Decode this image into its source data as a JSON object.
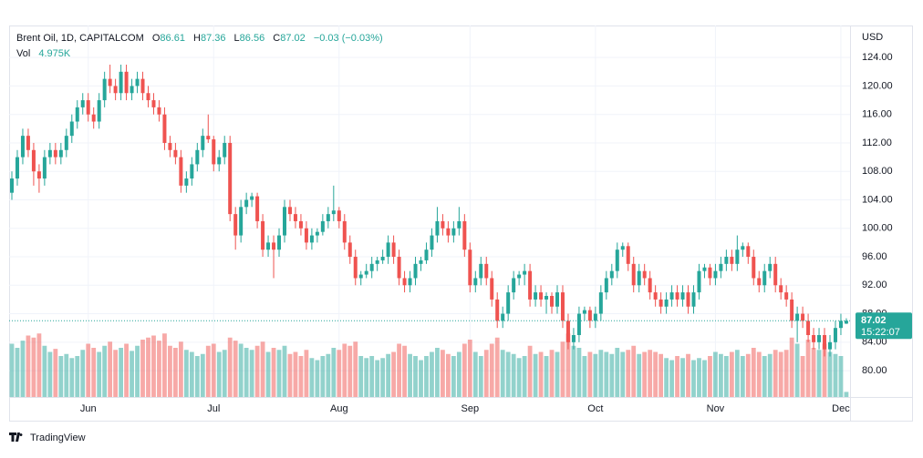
{
  "chart_data": {
    "type": "candlestick",
    "header": {
      "symbol": "Brent Oil, 1D, CAPITALCOM",
      "o_label": "O",
      "o": "86.61",
      "h_label": "H",
      "h": "87.36",
      "l_label": "L",
      "l": "86.56",
      "c_label": "C",
      "c": "87.02",
      "change": "−0.03 (−0.03%)",
      "vol_label": "Vol",
      "vol": "4.975K"
    },
    "currency": "USD",
    "last_price": 87.02,
    "last_price_label": "87.02",
    "countdown": "15:22:07",
    "brand": "TradingView",
    "up_color": "#26a69a",
    "down_color": "#ef5350",
    "grid": true,
    "ylim": [
      76.3,
      128.5
    ],
    "yticks": [
      {
        "value": 80,
        "label": "80.00"
      },
      {
        "value": 84,
        "label": "84.00"
      },
      {
        "value": 88,
        "label": "88.00"
      },
      {
        "value": 92,
        "label": "92.00"
      },
      {
        "value": 96,
        "label": "96.00"
      },
      {
        "value": 100,
        "label": "100.00"
      },
      {
        "value": 104,
        "label": "104.00"
      },
      {
        "value": 108,
        "label": "108.00"
      },
      {
        "value": 112,
        "label": "112.00"
      },
      {
        "value": 116,
        "label": "116.00"
      },
      {
        "value": 120,
        "label": "120.00"
      },
      {
        "value": 124,
        "label": "124.00"
      }
    ],
    "vlim": [
      0,
      80
    ],
    "xticks": [
      {
        "value": 14,
        "label": "Jun"
      },
      {
        "value": 37,
        "label": "Jul"
      },
      {
        "value": 60,
        "label": "Aug"
      },
      {
        "value": 84,
        "label": "Sep"
      },
      {
        "value": 107,
        "label": "Oct"
      },
      {
        "value": 129,
        "label": "Nov"
      },
      {
        "value": 152,
        "label": "Dec"
      }
    ],
    "candles": [
      [
        105,
        108,
        104,
        107,
        52
      ],
      [
        107,
        111,
        106,
        110,
        48
      ],
      [
        110,
        114,
        109,
        113,
        55
      ],
      [
        113,
        114,
        110,
        111,
        60
      ],
      [
        111,
        112,
        106,
        108,
        58
      ],
      [
        108,
        109,
        105,
        107,
        62
      ],
      [
        107,
        111,
        106,
        110,
        50
      ],
      [
        110,
        112,
        109,
        111,
        44
      ],
      [
        111,
        112,
        109,
        110,
        47
      ],
      [
        110,
        112,
        109,
        111,
        40
      ],
      [
        111,
        114,
        110,
        113,
        42
      ],
      [
        113,
        116,
        112,
        115,
        38
      ],
      [
        115,
        118,
        114,
        117,
        40
      ],
      [
        117,
        119,
        116,
        118,
        46
      ],
      [
        118,
        119,
        115,
        116,
        52
      ],
      [
        116,
        117,
        114,
        115,
        48
      ],
      [
        115,
        119,
        114,
        118,
        44
      ],
      [
        118,
        122,
        117,
        121,
        50
      ],
      [
        121,
        123,
        119,
        120,
        54
      ],
      [
        120,
        121,
        118,
        119,
        46
      ],
      [
        119,
        123,
        118,
        122,
        48
      ],
      [
        122,
        123,
        118,
        119,
        52
      ],
      [
        119,
        121,
        118,
        120,
        45
      ],
      [
        120,
        122,
        119,
        121,
        50
      ],
      [
        121,
        122,
        118,
        119,
        56
      ],
      [
        119,
        120,
        117,
        118,
        58
      ],
      [
        118,
        119,
        116,
        117,
        60
      ],
      [
        117,
        118,
        115,
        116,
        55
      ],
      [
        116,
        117,
        111,
        112,
        62
      ],
      [
        112,
        113,
        110,
        111,
        50
      ],
      [
        111,
        112,
        109,
        110,
        48
      ],
      [
        110,
        111,
        105,
        106,
        54
      ],
      [
        106,
        108,
        105,
        107,
        46
      ],
      [
        107,
        110,
        106,
        109,
        44
      ],
      [
        109,
        112,
        108,
        111,
        40
      ],
      [
        111,
        114,
        110,
        113,
        42
      ],
      [
        113,
        116,
        112,
        112.5,
        50
      ],
      [
        112.5,
        113,
        108,
        109,
        52
      ],
      [
        109,
        111,
        108,
        110,
        44
      ],
      [
        110,
        113,
        109,
        112,
        46
      ],
      [
        112,
        113,
        101,
        102,
        58
      ],
      [
        102,
        103,
        97,
        99,
        55
      ],
      [
        99,
        104,
        98,
        103,
        52
      ],
      [
        103,
        105,
        102,
        104,
        48
      ],
      [
        104,
        105,
        103,
        104.5,
        46
      ],
      [
        104.5,
        105,
        100,
        101,
        50
      ],
      [
        101,
        102,
        96,
        97,
        54
      ],
      [
        97,
        99,
        96,
        98,
        44
      ],
      [
        98,
        99,
        93,
        97,
        48
      ],
      [
        97,
        100,
        96,
        99,
        46
      ],
      [
        99,
        104,
        98,
        103,
        50
      ],
      [
        103,
        104,
        101,
        102,
        42
      ],
      [
        102,
        103,
        100,
        101,
        44
      ],
      [
        101,
        102,
        99,
        100,
        40
      ],
      [
        100,
        101,
        97,
        98,
        46
      ],
      [
        98,
        100,
        97,
        99,
        38
      ],
      [
        99,
        100,
        98,
        99.5,
        36
      ],
      [
        99.5,
        102,
        99,
        101,
        40
      ],
      [
        101,
        103,
        100,
        102,
        42
      ],
      [
        102,
        106,
        101,
        102.5,
        48
      ],
      [
        102.5,
        103,
        100,
        101,
        46
      ],
      [
        101,
        102,
        97,
        98,
        52
      ],
      [
        98,
        99,
        95,
        96,
        50
      ],
      [
        96,
        97,
        92,
        93,
        54
      ],
      [
        93,
        94,
        92,
        93.5,
        40
      ],
      [
        93.5,
        95,
        93,
        94,
        38
      ],
      [
        94,
        96,
        93,
        95,
        40
      ],
      [
        95,
        96,
        94,
        95.5,
        36
      ],
      [
        95.5,
        97,
        95,
        96,
        38
      ],
      [
        96,
        99,
        95,
        98,
        42
      ],
      [
        98,
        99,
        95,
        96,
        44
      ],
      [
        96,
        97,
        92,
        93,
        52
      ],
      [
        93,
        94,
        91,
        92,
        50
      ],
      [
        92,
        94,
        91,
        93,
        42
      ],
      [
        93,
        96,
        92,
        95,
        40
      ],
      [
        95,
        96,
        94,
        95.5,
        36
      ],
      [
        95.5,
        98,
        95,
        97,
        40
      ],
      [
        97,
        100,
        96,
        99,
        44
      ],
      [
        99,
        103,
        98,
        101,
        48
      ],
      [
        101,
        102,
        99,
        100,
        46
      ],
      [
        100,
        101,
        98,
        99,
        42
      ],
      [
        99,
        101,
        98,
        100,
        40
      ],
      [
        100,
        103,
        99,
        101,
        44
      ],
      [
        101,
        102,
        96,
        97,
        52
      ],
      [
        97,
        98,
        91,
        92,
        56
      ],
      [
        92,
        94,
        91,
        93,
        44
      ],
      [
        93,
        96,
        92,
        95,
        40
      ],
      [
        95,
        96,
        92,
        93,
        46
      ],
      [
        93,
        94,
        89,
        90,
        52
      ],
      [
        90,
        91,
        86,
        87,
        58
      ],
      [
        87,
        89,
        86,
        88,
        46
      ],
      [
        88,
        92,
        87,
        91,
        44
      ],
      [
        91,
        94,
        90,
        93,
        42
      ],
      [
        93,
        94,
        92,
        93.5,
        38
      ],
      [
        93.5,
        95,
        92,
        94,
        40
      ],
      [
        94,
        95,
        89,
        90,
        50
      ],
      [
        90,
        92,
        89,
        91,
        42
      ],
      [
        91,
        92,
        89,
        90,
        44
      ],
      [
        90,
        91,
        88,
        90.5,
        40
      ],
      [
        90.5,
        91,
        88,
        89,
        46
      ],
      [
        89,
        92,
        88,
        91,
        44
      ],
      [
        91,
        92,
        86,
        87,
        54
      ],
      [
        87,
        88,
        83,
        84,
        62
      ],
      [
        84,
        86,
        83,
        85,
        50
      ],
      [
        85,
        89,
        84,
        88,
        48
      ],
      [
        88,
        89,
        87,
        88.5,
        40
      ],
      [
        88.5,
        89,
        86,
        87,
        44
      ],
      [
        87,
        89,
        86,
        88,
        42
      ],
      [
        88,
        92,
        87,
        91,
        46
      ],
      [
        91,
        94,
        90,
        93,
        44
      ],
      [
        93,
        95,
        92,
        94,
        42
      ],
      [
        94,
        98,
        93,
        97,
        48
      ],
      [
        97,
        98,
        96,
        97.5,
        44
      ],
      [
        97.5,
        98,
        94,
        95,
        46
      ],
      [
        95,
        96,
        91,
        92,
        50
      ],
      [
        92,
        95,
        91,
        94,
        42
      ],
      [
        94,
        95,
        92,
        93,
        44
      ],
      [
        93,
        94,
        90,
        91,
        46
      ],
      [
        91,
        92,
        89,
        90,
        44
      ],
      [
        90,
        91,
        88,
        89,
        42
      ],
      [
        89,
        91,
        88,
        90,
        38
      ],
      [
        90,
        92,
        89,
        91,
        36
      ],
      [
        91,
        92,
        89,
        90,
        40
      ],
      [
        90,
        92,
        89,
        91,
        38
      ],
      [
        91,
        92,
        88,
        89,
        42
      ],
      [
        89,
        92,
        88,
        91,
        36
      ],
      [
        91,
        95,
        90,
        94,
        38
      ],
      [
        94,
        95,
        93,
        94.5,
        36
      ],
      [
        94.5,
        95,
        92,
        93,
        40
      ],
      [
        93,
        95,
        92,
        94,
        44
      ],
      [
        94,
        96,
        93,
        95,
        42
      ],
      [
        95,
        97,
        94,
        96,
        40
      ],
      [
        96,
        97,
        94,
        95,
        44
      ],
      [
        95,
        99,
        94,
        97,
        46
      ],
      [
        97,
        98,
        96,
        97.5,
        40
      ],
      [
        97.5,
        98,
        95,
        96,
        42
      ],
      [
        96,
        97,
        92,
        93,
        48
      ],
      [
        93,
        94,
        91,
        92,
        44
      ],
      [
        92,
        95,
        91,
        94,
        40
      ],
      [
        94,
        96,
        93,
        95,
        42
      ],
      [
        95,
        96,
        91,
        92,
        46
      ],
      [
        92,
        93,
        90,
        91,
        44
      ],
      [
        91,
        92,
        89,
        90,
        46
      ],
      [
        90,
        91,
        86,
        87,
        58
      ],
      [
        87,
        89,
        84,
        88,
        52
      ],
      [
        88,
        89,
        86,
        87,
        40
      ],
      [
        87,
        88,
        84,
        85,
        56
      ],
      [
        85,
        86,
        83,
        84,
        48
      ],
      [
        84,
        86,
        83,
        85,
        46
      ],
      [
        85,
        86,
        82,
        83,
        52
      ],
      [
        83,
        85,
        82,
        84,
        44
      ],
      [
        84,
        87,
        83,
        86,
        42
      ],
      [
        86,
        88,
        85,
        87,
        40
      ],
      [
        86.61,
        87.36,
        86.56,
        87.02,
        4.975
      ]
    ]
  }
}
